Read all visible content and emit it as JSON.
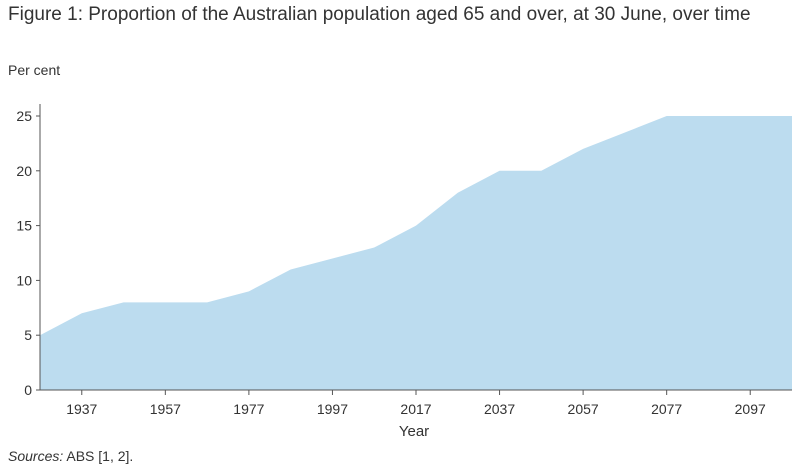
{
  "chart_data": {
    "type": "area",
    "title": "Figure 1: Proportion of the Australian population aged 65 and over, at 30 June, over time",
    "ylabel": "Per cent",
    "xlabel": "Year",
    "x": [
      1927,
      1937,
      1947,
      1957,
      1967,
      1977,
      1987,
      1997,
      2007,
      2017,
      2027,
      2037,
      2047,
      2057,
      2067,
      2077,
      2087,
      2097,
      2107
    ],
    "values": [
      5,
      7,
      8,
      8,
      8,
      9,
      11,
      12,
      13,
      15,
      18,
      20,
      20,
      22,
      23.5,
      25,
      25,
      25,
      25
    ],
    "xticks": [
      1937,
      1957,
      1977,
      1997,
      2017,
      2037,
      2057,
      2077,
      2097
    ],
    "yticks": [
      0,
      5,
      10,
      15,
      20,
      25
    ],
    "xlim": [
      1927,
      2107
    ],
    "ylim": [
      0,
      25
    ],
    "grid": false,
    "fill_color": "#bcdcef"
  },
  "source": {
    "label": "Sources:",
    "text": "ABS [1, 2]."
  }
}
